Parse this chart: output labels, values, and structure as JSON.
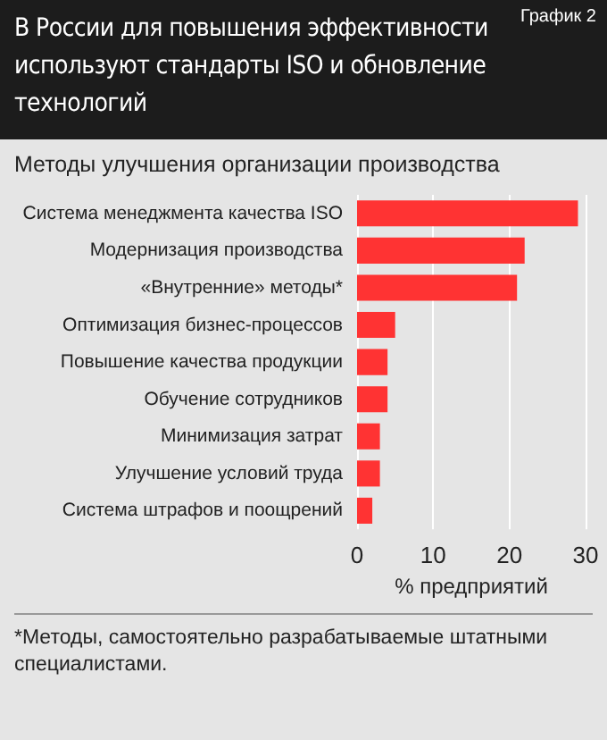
{
  "chart_data": {
    "type": "bar",
    "orientation": "horizontal",
    "title": "В России для повышения эффективности используют стандарты  ISO и обновление технологий",
    "subtitle": "Методы улучшения организации производства",
    "xlabel": "% предприятий",
    "categories": [
      "Система менеджмента качества ISO",
      "Модернизация производства",
      "«Внутренние» методы*",
      "Оптимизация бизнес-процессов",
      "Повышение качества продукции",
      "Обучение сотрудников",
      "Минимизация затрат",
      "Улучшение условий труда",
      "Система штрафов и поощрений"
    ],
    "values": [
      29,
      22,
      21,
      5,
      4,
      4,
      3,
      3,
      2
    ],
    "color": "#ff3333",
    "xlim": [
      0,
      30
    ],
    "xticks": [
      0,
      10,
      20,
      30
    ],
    "grid": "x",
    "annotations": [
      "График 2",
      "*Методы, самостоятельно разрабатываемые штатными специалистами."
    ]
  }
}
